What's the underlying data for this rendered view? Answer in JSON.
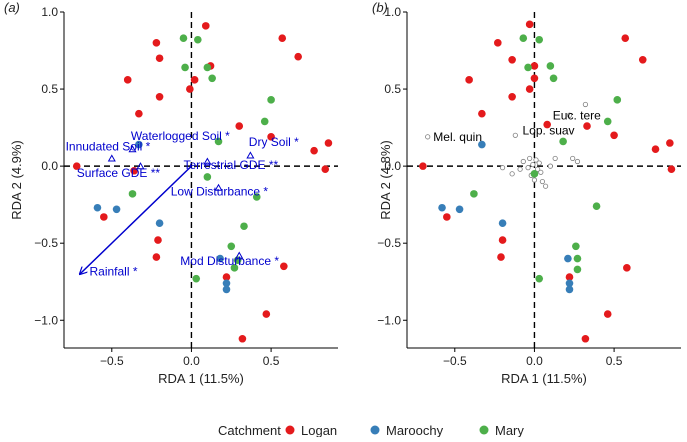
{
  "figure": {
    "legend_title": "Catchment",
    "legend_items": [
      {
        "name": "Logan",
        "color": "#e41a1c"
      },
      {
        "name": "Maroochy",
        "color": "#377eb8"
      },
      {
        "name": "Mary",
        "color": "#4daf4a"
      }
    ],
    "colors": {
      "vector": "#0000cd",
      "species": "#7f7f7f",
      "axis": "#000000"
    }
  },
  "chart_data": [
    {
      "type": "scatter",
      "panel_label": "(a)",
      "xlabel": "RDA 1 (11.5%)",
      "ylabel": "RDA 2 (4.9%)",
      "xlim": [
        -0.8,
        0.92
      ],
      "ylim": [
        -1.18,
        1.0
      ],
      "x_ticks": [
        -0.5,
        0.0,
        0.5
      ],
      "x_tick_labels": [
        "−0.5",
        "0.0",
        "0.5"
      ],
      "y_ticks": [
        -1.0,
        -0.5,
        0.0,
        0.5,
        1.0
      ],
      "y_tick_labels": [
        "−1.0",
        "−0.5",
        "0.0",
        "0.5",
        "1.0"
      ],
      "grid": false,
      "series": [
        {
          "name": "Logan",
          "color": "#e41a1c",
          "points": [
            [
              0.09,
              0.91
            ],
            [
              -0.22,
              0.8
            ],
            [
              0.57,
              0.83
            ],
            [
              0.67,
              0.71
            ],
            [
              -0.4,
              0.56
            ],
            [
              -0.2,
              0.7
            ],
            [
              0.12,
              0.65
            ],
            [
              0.02,
              0.56
            ],
            [
              -0.01,
              0.5
            ],
            [
              -0.2,
              0.45
            ],
            [
              -0.33,
              0.34
            ],
            [
              0.3,
              0.26
            ],
            [
              0.5,
              0.19
            ],
            [
              0.86,
              0.15
            ],
            [
              0.77,
              0.1
            ],
            [
              -0.72,
              0.0
            ],
            [
              0.84,
              -0.02
            ],
            [
              -0.36,
              -0.03
            ],
            [
              -0.55,
              -0.33
            ],
            [
              -0.21,
              -0.48
            ],
            [
              -0.22,
              -0.59
            ],
            [
              0.58,
              -0.65
            ],
            [
              0.22,
              -0.72
            ],
            [
              0.47,
              -0.96
            ],
            [
              0.32,
              -1.12
            ]
          ]
        },
        {
          "name": "Maroochy",
          "color": "#377eb8",
          "points": [
            [
              -0.33,
              0.14
            ],
            [
              -0.59,
              -0.27
            ],
            [
              -0.47,
              -0.28
            ],
            [
              -0.2,
              -0.37
            ],
            [
              0.18,
              -0.6
            ],
            [
              0.22,
              -0.76
            ],
            [
              0.22,
              -0.8
            ]
          ]
        },
        {
          "name": "Mary",
          "color": "#4daf4a",
          "points": [
            [
              -0.05,
              0.83
            ],
            [
              0.04,
              0.82
            ],
            [
              0.1,
              0.64
            ],
            [
              -0.04,
              0.64
            ],
            [
              0.13,
              0.57
            ],
            [
              0.5,
              0.43
            ],
            [
              0.46,
              0.29
            ],
            [
              0.17,
              0.16
            ],
            [
              -0.37,
              -0.18
            ],
            [
              0.1,
              -0.07
            ],
            [
              0.41,
              -0.2
            ],
            [
              0.25,
              -0.52
            ],
            [
              0.33,
              -0.39
            ],
            [
              0.29,
              -0.61
            ],
            [
              0.27,
              -0.66
            ],
            [
              0.03,
              -0.73
            ]
          ]
        }
      ],
      "vectors": [
        {
          "label": "Waterlogged Soil *",
          "x": -0.37,
          "y": 0.11,
          "label_x": -0.38,
          "label_y": 0.17
        },
        {
          "label": "Innudated Soil *",
          "x": -0.5,
          "y": 0.05,
          "label_x": -0.79,
          "label_y": 0.1
        },
        {
          "label": "Dry Soil *",
          "x": 0.37,
          "y": 0.07,
          "label_x": 0.36,
          "label_y": 0.13
        },
        {
          "label": "Surface GDE **",
          "x": -0.32,
          "y": 0.0,
          "label_x": -0.72,
          "label_y": -0.07
        },
        {
          "label": "Terrestrial GDE **",
          "x": 0.1,
          "y": 0.03,
          "label_x": -0.05,
          "label_y": -0.02
        },
        {
          "label": "Low Disturbance *",
          "x": 0.17,
          "y": -0.14,
          "label_x": -0.13,
          "label_y": -0.19
        },
        {
          "label": "Mod Disturbance *",
          "x": 0.3,
          "y": -0.58,
          "label_x": -0.07,
          "label_y": -0.64
        },
        {
          "label": "Rainfall *",
          "x": -0.7,
          "y": -0.7,
          "label_x": -0.64,
          "label_y": -0.71
        }
      ]
    },
    {
      "type": "scatter",
      "panel_label": "(b)",
      "xlabel": "RDA 1 (11.5%)",
      "ylabel": "RDA 2 (4.8%)",
      "xlim": [
        -0.8,
        0.92
      ],
      "ylim": [
        -1.18,
        1.0
      ],
      "x_ticks": [
        -0.5,
        0.0,
        0.5
      ],
      "x_tick_labels": [
        "−0.5",
        "0.0",
        "0.5"
      ],
      "y_ticks": [
        -1.0,
        -0.5,
        0.0,
        0.5,
        1.0
      ],
      "y_tick_labels": [
        "−1.0",
        "−0.5",
        "0.0",
        "0.5",
        "1.0"
      ],
      "grid": false,
      "series": [
        {
          "name": "Logan",
          "color": "#e41a1c",
          "points": [
            [
              -0.03,
              0.92
            ],
            [
              -0.23,
              0.8
            ],
            [
              0.57,
              0.83
            ],
            [
              0.68,
              0.69
            ],
            [
              -0.41,
              0.56
            ],
            [
              -0.14,
              0.69
            ],
            [
              0.0,
              0.65
            ],
            [
              0.0,
              0.57
            ],
            [
              -0.03,
              0.5
            ],
            [
              -0.14,
              0.45
            ],
            [
              -0.33,
              0.34
            ],
            [
              0.08,
              0.27
            ],
            [
              0.33,
              0.26
            ],
            [
              0.5,
              0.2
            ],
            [
              0.85,
              0.15
            ],
            [
              0.76,
              0.11
            ],
            [
              -0.7,
              0.0
            ],
            [
              0.86,
              -0.02
            ],
            [
              -0.55,
              -0.33
            ],
            [
              -0.2,
              -0.48
            ],
            [
              -0.21,
              -0.59
            ],
            [
              0.58,
              -0.66
            ],
            [
              0.22,
              -0.72
            ],
            [
              0.46,
              -0.96
            ],
            [
              0.32,
              -1.12
            ]
          ]
        },
        {
          "name": "Maroochy",
          "color": "#377eb8",
          "points": [
            [
              -0.33,
              0.14
            ],
            [
              -0.58,
              -0.27
            ],
            [
              -0.47,
              -0.28
            ],
            [
              -0.2,
              -0.37
            ],
            [
              0.21,
              -0.6
            ],
            [
              0.22,
              -0.76
            ],
            [
              0.22,
              -0.8
            ]
          ]
        },
        {
          "name": "Mary",
          "color": "#4daf4a",
          "points": [
            [
              -0.07,
              0.83
            ],
            [
              0.03,
              0.82
            ],
            [
              0.1,
              0.65
            ],
            [
              -0.04,
              0.64
            ],
            [
              0.12,
              0.57
            ],
            [
              0.52,
              0.43
            ],
            [
              0.46,
              0.29
            ],
            [
              0.18,
              0.16
            ],
            [
              -0.38,
              -0.18
            ],
            [
              0.0,
              -0.05
            ],
            [
              0.39,
              -0.26
            ],
            [
              0.26,
              -0.52
            ],
            [
              0.27,
              -0.6
            ],
            [
              0.27,
              -0.67
            ],
            [
              0.03,
              -0.73
            ]
          ]
        }
      ],
      "species_points": [
        [
          -0.67,
          0.19
        ],
        [
          0.32,
          0.4
        ],
        [
          0.22,
          0.33
        ],
        [
          -0.12,
          0.2
        ],
        [
          -0.07,
          0.03
        ],
        [
          -0.03,
          0.05
        ],
        [
          0.01,
          0.04
        ],
        [
          0.03,
          0.02
        ],
        [
          -0.01,
          0.01
        ],
        [
          0.02,
          -0.02
        ],
        [
          -0.04,
          -0.01
        ],
        [
          0.04,
          -0.04
        ],
        [
          -0.02,
          -0.06
        ],
        [
          0.05,
          -0.1
        ],
        [
          -0.14,
          -0.05
        ],
        [
          0.1,
          0.0
        ],
        [
          0.24,
          0.05
        ],
        [
          0.27,
          0.03
        ],
        [
          -0.09,
          -0.02
        ],
        [
          0.07,
          -0.13
        ],
        [
          -0.2,
          -0.01
        ],
        [
          0.0,
          -0.09
        ],
        [
          0.13,
          0.05
        ]
      ],
      "species_labels": [
        {
          "label": "Mel. quin",
          "x": -0.66,
          "y": 0.19
        },
        {
          "label": "Euc. tere",
          "x": 0.09,
          "y": 0.33
        },
        {
          "label": "Lop. suav",
          "x": -0.1,
          "y": 0.23
        }
      ]
    }
  ]
}
